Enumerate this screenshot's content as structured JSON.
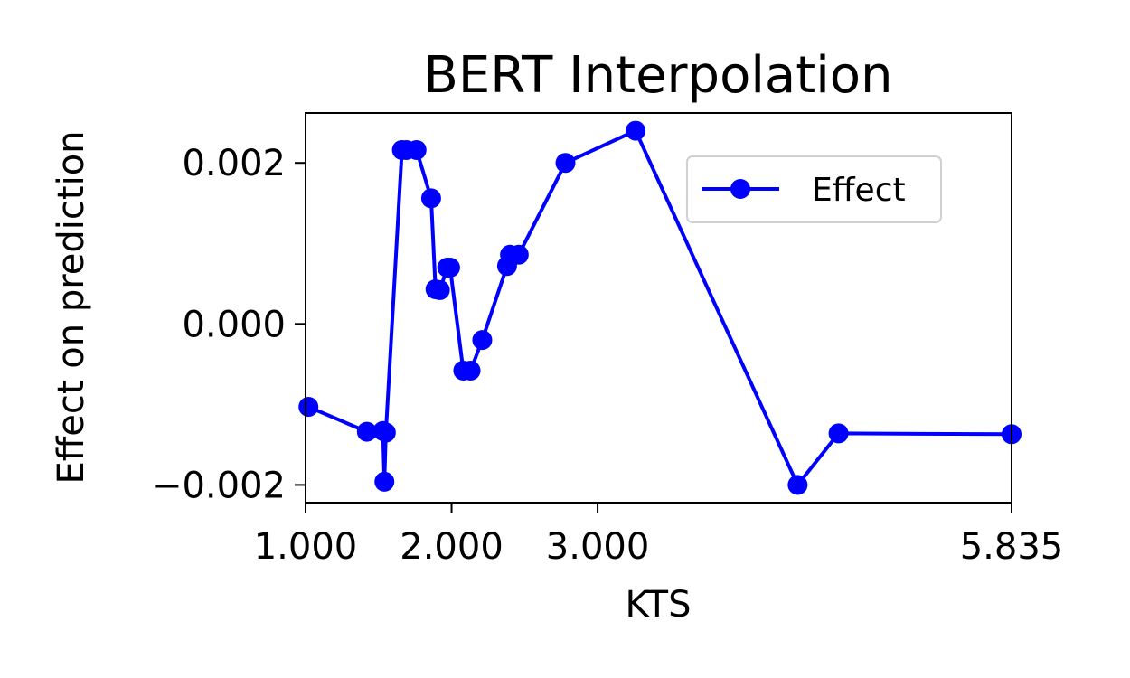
{
  "chart_data": {
    "type": "line",
    "title": "BERT Interpolation",
    "xlabel": "KTS",
    "ylabel": "Effect on prediction",
    "xlim": [
      1.0,
      5.835
    ],
    "ylim": [
      -0.00222,
      0.00262
    ],
    "xticks": [
      1.0,
      2.0,
      3.0,
      5.835
    ],
    "xtick_labels": [
      "1.000",
      "2.000",
      "3.000",
      "5.835"
    ],
    "yticks": [
      -0.002,
      0.0,
      0.002
    ],
    "ytick_labels": [
      "−0.002",
      "0.000",
      "0.002"
    ],
    "grid": false,
    "legend": {
      "position": "upper-right",
      "entries": [
        "Effect"
      ]
    },
    "series": [
      {
        "name": "Effect",
        "color": "#0000ff",
        "marker": "circle",
        "x": [
          1.02,
          1.42,
          1.53,
          1.54,
          1.55,
          1.66,
          1.69,
          1.76,
          1.86,
          1.89,
          1.92,
          1.97,
          1.99,
          2.08,
          2.13,
          2.21,
          2.38,
          2.4,
          2.46,
          2.78,
          3.26,
          4.37,
          4.65,
          5.835
        ],
        "y": [
          -0.00103,
          -0.00134,
          -0.00133,
          -0.00196,
          -0.00135,
          0.00216,
          0.00216,
          0.00216,
          0.00156,
          0.00043,
          0.00042,
          0.0007,
          0.0007,
          -0.00058,
          -0.00058,
          -0.0002,
          0.00072,
          0.00086,
          0.00086,
          0.002,
          0.0024,
          -0.002,
          -0.00136,
          -0.00137
        ]
      }
    ]
  }
}
